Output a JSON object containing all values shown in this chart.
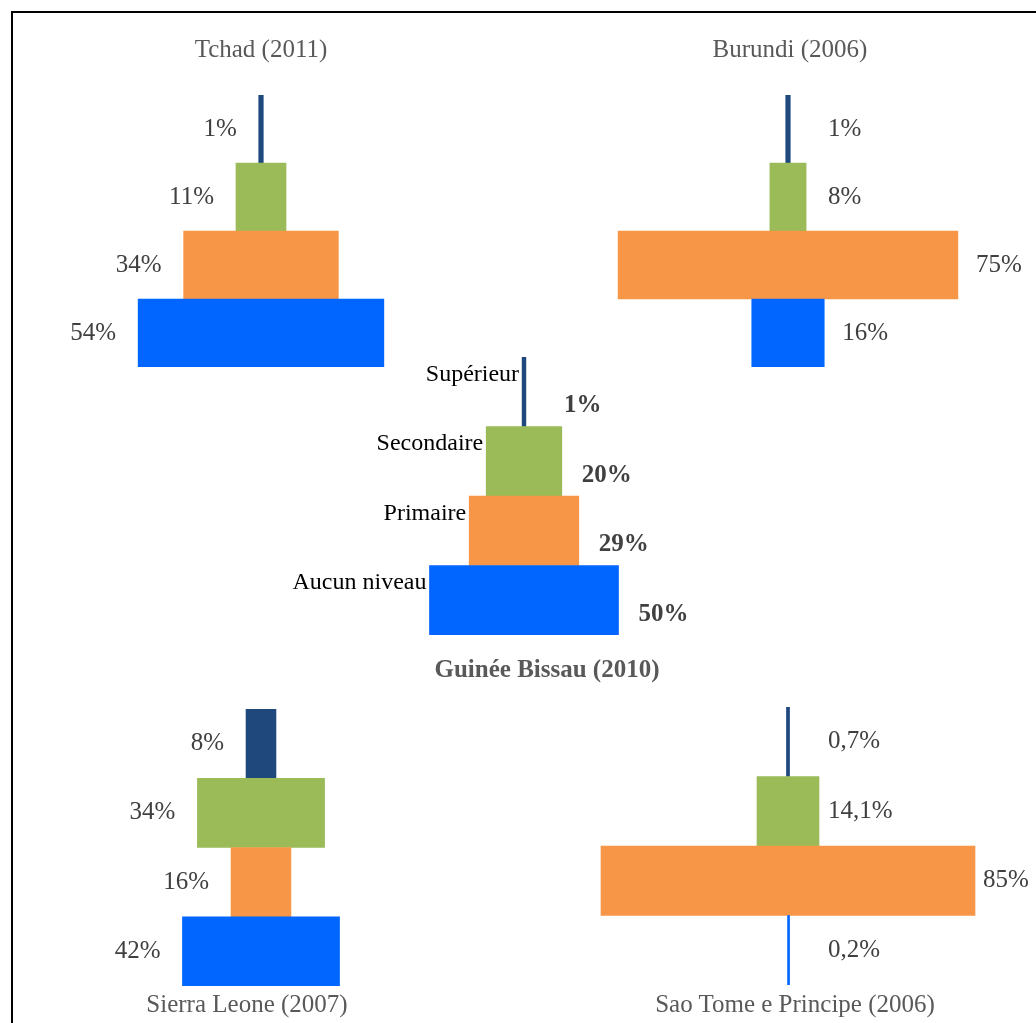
{
  "chart_data": [
    {
      "type": "other",
      "title": "Tchad (2011)",
      "categories": [
        null,
        null,
        null,
        null
      ],
      "values": [
        1,
        11,
        34,
        54
      ],
      "value_labels": [
        "1%",
        "11%",
        "34%",
        "54%"
      ],
      "colors": [
        "#1f497d",
        "#9bbb59",
        "#f79646",
        "#0066ff"
      ]
    },
    {
      "type": "other",
      "title": "Burundi (2006)",
      "categories": [
        null,
        null,
        null,
        null
      ],
      "values": [
        1,
        8,
        75,
        16
      ],
      "value_labels": [
        "1%",
        "8%",
        "75%",
        "16%"
      ],
      "colors": [
        "#1f497d",
        "#9bbb59",
        "#f79646",
        "#0066ff"
      ]
    },
    {
      "type": "other",
      "title": "Guinée Bissau (2010)",
      "categories": [
        "Supérieur",
        "Secondaire",
        "Primaire",
        "Aucun niveau"
      ],
      "values": [
        1,
        20,
        29,
        50
      ],
      "value_labels": [
        "1%",
        "20%",
        "29%",
        "50%"
      ],
      "colors": [
        "#1f497d",
        "#9bbb59",
        "#f79646",
        "#0066ff"
      ]
    },
    {
      "type": "other",
      "title": "Sierra Leone (2007)",
      "categories": [
        null,
        null,
        null,
        null
      ],
      "values": [
        8,
        34,
        16,
        42
      ],
      "value_labels": [
        "8%",
        "34%",
        "16%",
        "42%"
      ],
      "colors": [
        "#1f497d",
        "#9bbb59",
        "#f79646",
        "#0066ff"
      ]
    },
    {
      "type": "other",
      "title": "Sao Tome e Principe (2006)",
      "categories": [
        null,
        null,
        null,
        null
      ],
      "values": [
        0.7,
        14.1,
        85,
        0.2
      ],
      "value_labels": [
        "0,7%",
        "14,1%",
        "85%",
        "0,2%"
      ],
      "colors": [
        "#1f497d",
        "#9bbb59",
        "#f79646",
        "#0066ff"
      ]
    }
  ]
}
